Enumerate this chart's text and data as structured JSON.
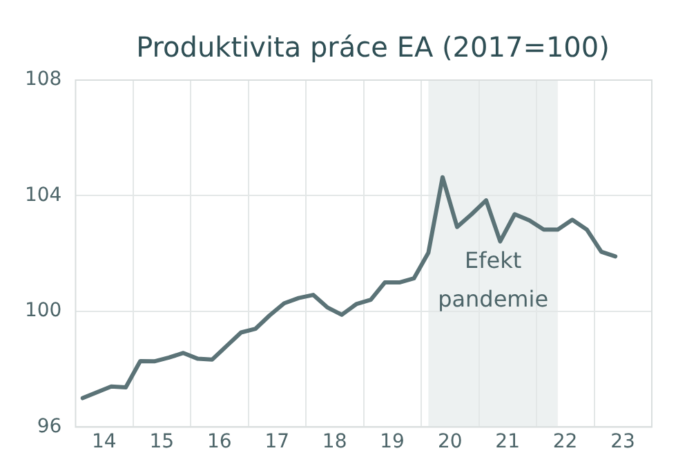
{
  "chart_data": {
    "type": "line",
    "title": "Produktivita práce EA (2017=100)",
    "x": [
      "2014-02-15",
      "2014-05-15",
      "2014-08-15",
      "2014-11-15",
      "2015-02-15",
      "2015-05-15",
      "2015-08-15",
      "2015-11-15",
      "2016-02-15",
      "2016-05-15",
      "2016-08-15",
      "2016-11-15",
      "2017-02-15",
      "2017-05-15",
      "2017-08-15",
      "2017-11-15",
      "2018-02-15",
      "2018-05-15",
      "2018-08-15",
      "2018-11-15",
      "2019-02-15",
      "2019-05-15",
      "2019-08-15",
      "2019-11-15",
      "2020-02-15",
      "2020-05-15",
      "2020-08-15",
      "2020-11-15",
      "2021-02-15",
      "2021-05-15",
      "2021-08-15",
      "2021-11-15",
      "2022-02-15",
      "2022-05-15",
      "2022-08-15",
      "2022-11-15",
      "2023-02-15",
      "2023-05-15"
    ],
    "series": [
      {
        "color": "#5b7377",
        "values": [
          97.0,
          97.2,
          97.4,
          97.37,
          98.28,
          98.27,
          98.4,
          98.56,
          98.36,
          98.33,
          98.8,
          99.27,
          99.4,
          99.86,
          100.28,
          100.46,
          100.57,
          100.14,
          99.88,
          100.25,
          100.4,
          101.0,
          101.0,
          101.14,
          102.03,
          104.64,
          102.92,
          103.36,
          103.84,
          102.42,
          103.36,
          103.15,
          102.83,
          102.83,
          103.17,
          102.83,
          102.06,
          101.9
        ]
      }
    ],
    "xlim": [
      "2014-01-01",
      "2024-01-01"
    ],
    "xticks": [
      {
        "value": "2014-07-01",
        "label": "14"
      },
      {
        "value": "2015-01-01",
        "label": null
      },
      {
        "value": "2015-07-01",
        "label": "15"
      },
      {
        "value": "2016-01-01",
        "label": null
      },
      {
        "value": "2016-07-01",
        "label": "16"
      },
      {
        "value": "2017-01-01",
        "label": null
      },
      {
        "value": "2017-07-01",
        "label": "17"
      },
      {
        "value": "2018-01-01",
        "label": null
      },
      {
        "value": "2018-07-01",
        "label": "18"
      },
      {
        "value": "2019-01-01",
        "label": null
      },
      {
        "value": "2019-07-01",
        "label": "19"
      },
      {
        "value": "2020-01-01",
        "label": null
      },
      {
        "value": "2020-07-01",
        "label": "20"
      },
      {
        "value": "2021-01-01",
        "label": null
      },
      {
        "value": "2021-07-01",
        "label": "21"
      },
      {
        "value": "2022-01-01",
        "label": null
      },
      {
        "value": "2022-07-01",
        "label": "22"
      },
      {
        "value": "2023-01-01",
        "label": null
      },
      {
        "value": "2023-07-01",
        "label": "23"
      }
    ],
    "ylim": [
      96,
      108
    ],
    "yticks": [
      96,
      100,
      104,
      108
    ],
    "bands": [
      {
        "axis": "x",
        "from": "2020-02-15",
        "to": "2022-05-15",
        "label": "Efekt pandemie",
        "color": "#edf1f1"
      }
    ],
    "grid": true,
    "marker": "none",
    "line_style": "solid"
  }
}
